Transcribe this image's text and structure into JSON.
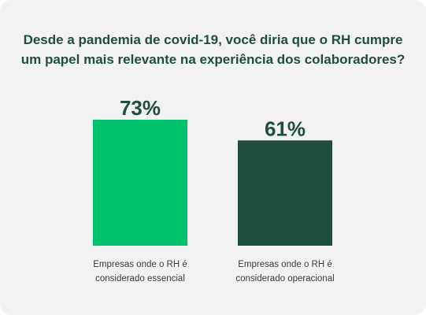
{
  "chart_data": {
    "type": "bar",
    "title_lines": [
      "Desde a pandemia de covid-19, você diria que o RH cumpre",
      "um papel mais relevante na experiência dos colaboradores?"
    ],
    "categories": [
      [
        "Empresas onde o RH é",
        "considerado essencial"
      ],
      [
        "Empresas onde o RH é",
        "considerado operacional"
      ]
    ],
    "values": [
      73,
      61
    ],
    "value_labels": [
      "73%",
      "61%"
    ],
    "colors": [
      "#00c16e",
      "#1f4d3e"
    ],
    "ylim": [
      0,
      100
    ],
    "grid": false,
    "legend": "none"
  }
}
